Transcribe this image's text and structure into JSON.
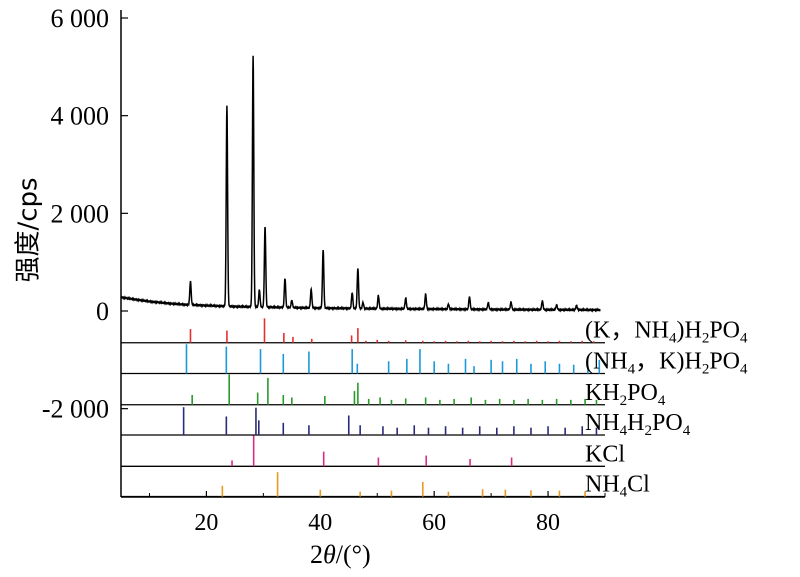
{
  "chart_data": {
    "type": "line",
    "xlabel_prefix": "2",
    "xlabel_var": "θ",
    "xlabel_suffix": "/(°)",
    "ylabel": "强度/cps",
    "xlim": [
      5,
      90
    ],
    "ylim": [
      -3800,
      6000
    ],
    "x_ticks": [
      20,
      40,
      60,
      80
    ],
    "y_ticks": [
      {
        "value": 6000,
        "label": "6 000"
      },
      {
        "value": 4000,
        "label": "4 000"
      },
      {
        "value": 2000,
        "label": "2 000"
      },
      {
        "value": 0,
        "label": "0"
      },
      {
        "value": -2000,
        "label": "-2 000"
      }
    ],
    "measured_pattern": {
      "color": "#000000",
      "baseline": [
        [
          5,
          280
        ],
        [
          7,
          245
        ],
        [
          10,
          195
        ],
        [
          13,
          160
        ],
        [
          16,
          132
        ],
        [
          20,
          112
        ],
        [
          25,
          92
        ],
        [
          30,
          80
        ],
        [
          40,
          60
        ],
        [
          50,
          48
        ],
        [
          60,
          40
        ],
        [
          70,
          32
        ],
        [
          80,
          26
        ],
        [
          90,
          22
        ]
      ],
      "peaks": [
        {
          "x": 17.2,
          "h": 480
        },
        {
          "x": 23.6,
          "h": 4100
        },
        {
          "x": 28.2,
          "h": 5150
        },
        {
          "x": 29.3,
          "h": 350
        },
        {
          "x": 30.3,
          "h": 1650
        },
        {
          "x": 33.8,
          "h": 600
        },
        {
          "x": 35.0,
          "h": 150
        },
        {
          "x": 38.4,
          "h": 380
        },
        {
          "x": 40.5,
          "h": 1200
        },
        {
          "x": 45.6,
          "h": 320
        },
        {
          "x": 46.6,
          "h": 820
        },
        {
          "x": 47.5,
          "h": 120
        },
        {
          "x": 50.2,
          "h": 270
        },
        {
          "x": 55.0,
          "h": 220
        },
        {
          "x": 58.5,
          "h": 300
        },
        {
          "x": 62.5,
          "h": 100
        },
        {
          "x": 66.2,
          "h": 260
        },
        {
          "x": 69.5,
          "h": 140
        },
        {
          "x": 73.5,
          "h": 150
        },
        {
          "x": 79.0,
          "h": 180
        },
        {
          "x": 81.5,
          "h": 100
        },
        {
          "x": 85.0,
          "h": 90
        }
      ]
    },
    "reference_patterns": [
      {
        "label_parts": [
          "(K，NH",
          "4",
          ")H",
          "2",
          "PO",
          "4"
        ],
        "color": "#e53030",
        "baseline": -650,
        "sticks": [
          [
            17.2,
            280
          ],
          [
            23.6,
            250
          ],
          [
            30.2,
            500
          ],
          [
            33.6,
            200
          ],
          [
            35.2,
            120
          ],
          [
            38.5,
            80
          ],
          [
            45.5,
            150
          ],
          [
            46.6,
            300
          ],
          [
            48,
            40
          ],
          [
            50,
            60
          ],
          [
            52,
            40
          ],
          [
            55,
            50
          ],
          [
            58,
            40
          ],
          [
            60,
            30
          ],
          [
            62,
            40
          ],
          [
            64,
            30
          ],
          [
            66,
            40
          ],
          [
            68,
            30
          ],
          [
            70,
            40
          ],
          [
            72,
            30
          ],
          [
            74,
            40
          ],
          [
            76,
            30
          ],
          [
            78,
            40
          ],
          [
            80,
            30
          ],
          [
            82,
            40
          ],
          [
            84,
            30
          ],
          [
            86,
            40
          ],
          [
            88,
            30
          ]
        ]
      },
      {
        "label_parts": [
          "(NH",
          "4",
          "，K)H",
          "2",
          "PO",
          "4"
        ],
        "color": "#1a9ad9",
        "baseline": -1280,
        "sticks": [
          [
            16.5,
            600
          ],
          [
            23.5,
            550
          ],
          [
            29.5,
            500
          ],
          [
            33.5,
            400
          ],
          [
            38.0,
            450
          ],
          [
            45.6,
            500
          ],
          [
            46.5,
            200
          ],
          [
            52.0,
            250
          ],
          [
            55.2,
            300
          ],
          [
            57.5,
            500
          ],
          [
            60.0,
            250
          ],
          [
            62.5,
            200
          ],
          [
            65.5,
            300
          ],
          [
            67.0,
            150
          ],
          [
            70.0,
            280
          ],
          [
            72.0,
            250
          ],
          [
            74.5,
            300
          ],
          [
            77.0,
            200
          ],
          [
            79.5,
            250
          ],
          [
            82.0,
            200
          ],
          [
            84.5,
            180
          ],
          [
            87.0,
            150
          ],
          [
            89.0,
            280
          ]
        ]
      },
      {
        "label_parts": [
          "KH",
          "2",
          "PO",
          "4"
        ],
        "color": "#2a9a2a",
        "baseline": -1920,
        "sticks": [
          [
            17.5,
            200
          ],
          [
            24.0,
            620
          ],
          [
            29.0,
            250
          ],
          [
            30.8,
            550
          ],
          [
            33.5,
            200
          ],
          [
            35.0,
            150
          ],
          [
            40.8,
            180
          ],
          [
            46.0,
            280
          ],
          [
            46.6,
            450
          ],
          [
            48.5,
            120
          ],
          [
            50.5,
            150
          ],
          [
            52.5,
            100
          ],
          [
            55.0,
            130
          ],
          [
            58.5,
            150
          ],
          [
            61.0,
            100
          ],
          [
            63.5,
            120
          ],
          [
            66.5,
            150
          ],
          [
            69.0,
            100
          ],
          [
            71.5,
            120
          ],
          [
            74.0,
            100
          ],
          [
            76.5,
            120
          ],
          [
            79.0,
            100
          ],
          [
            81.5,
            120
          ],
          [
            84.0,
            100
          ],
          [
            86.5,
            120
          ],
          [
            88.5,
            100
          ]
        ]
      },
      {
        "label_parts": [
          "NH",
          "4",
          "H",
          "2",
          "PO",
          "4"
        ],
        "color": "#2a2a7a",
        "baseline": -2540,
        "sticks": [
          [
            16.0,
            570
          ],
          [
            23.5,
            380
          ],
          [
            28.7,
            560
          ],
          [
            29.2,
            300
          ],
          [
            33.5,
            250
          ],
          [
            38.0,
            200
          ],
          [
            45.0,
            400
          ],
          [
            47.0,
            200
          ],
          [
            51.0,
            180
          ],
          [
            53.5,
            150
          ],
          [
            56.5,
            200
          ],
          [
            59.0,
            150
          ],
          [
            62.0,
            180
          ],
          [
            65.0,
            150
          ],
          [
            68.0,
            180
          ],
          [
            71.0,
            150
          ],
          [
            74.0,
            180
          ],
          [
            77.0,
            150
          ],
          [
            80.0,
            180
          ],
          [
            83.0,
            150
          ],
          [
            86.0,
            180
          ],
          [
            88.5,
            150
          ]
        ]
      },
      {
        "label_parts": [
          "KCl"
        ],
        "color": "#d92c82",
        "baseline": -3180,
        "sticks": [
          [
            24.5,
            120
          ],
          [
            28.3,
            630
          ],
          [
            40.6,
            300
          ],
          [
            50.2,
            180
          ],
          [
            58.6,
            220
          ],
          [
            66.3,
            150
          ],
          [
            73.6,
            180
          ]
        ]
      },
      {
        "label_parts": [
          "NH",
          "4",
          "Cl"
        ],
        "color": "#e89a20",
        "baseline": -3800,
        "sticks": [
          [
            22.8,
            220
          ],
          [
            32.5,
            500
          ],
          [
            40.0,
            140
          ],
          [
            47.0,
            100
          ],
          [
            52.5,
            120
          ],
          [
            58.0,
            300
          ],
          [
            62.5,
            100
          ],
          [
            68.5,
            150
          ],
          [
            72.5,
            140
          ],
          [
            77.0,
            130
          ],
          [
            82.0,
            120
          ],
          [
            86.5,
            110
          ]
        ]
      }
    ]
  }
}
